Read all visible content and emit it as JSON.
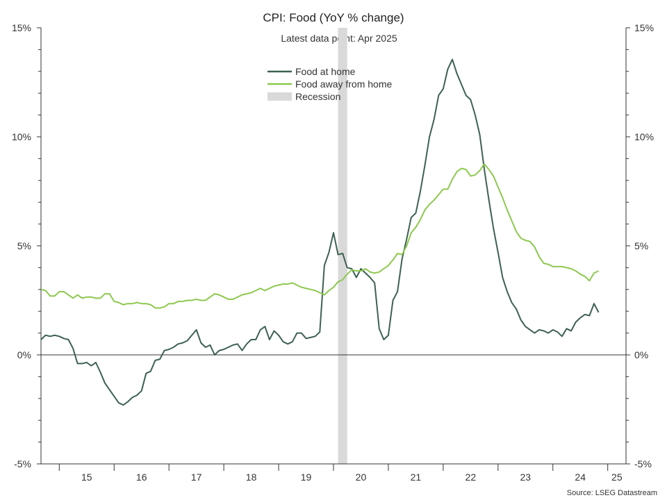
{
  "chart_data": {
    "type": "line",
    "title": "CPI: Food (YoY % change)",
    "subtitle": "Latest data point: Apr 2025",
    "source": "Source: LSEG Datastream",
    "y_unit": "%",
    "ylim": [
      -5,
      15
    ],
    "yticks": [
      -5,
      0,
      5,
      10,
      15
    ],
    "ytick_labels": [
      "-5%",
      "0%",
      "5%",
      "10%",
      "15%"
    ],
    "xlim": [
      "2014-09",
      "2025-05"
    ],
    "x_tick_labels": [
      "15",
      "16",
      "17",
      "18",
      "19",
      "20",
      "21",
      "22",
      "23",
      "24",
      "25"
    ],
    "legend_position": "top-center",
    "recession": {
      "label": "Recession",
      "start": "2020-02",
      "end": "2020-04",
      "color": "#d9d9d9"
    },
    "series": [
      {
        "name": "Food at home",
        "color": "#3d6150",
        "points": [
          [
            "2014-09",
            0.7
          ],
          [
            "2014-10",
            0.9
          ],
          [
            "2014-11",
            0.85
          ],
          [
            "2014-12",
            0.9
          ],
          [
            "2015-01",
            0.85
          ],
          [
            "2015-02",
            0.75
          ],
          [
            "2015-03",
            0.7
          ],
          [
            "2015-04",
            0.3
          ],
          [
            "2015-05",
            -0.4
          ],
          [
            "2015-06",
            -0.4
          ],
          [
            "2015-07",
            -0.35
          ],
          [
            "2015-08",
            -0.5
          ],
          [
            "2015-09",
            -0.35
          ],
          [
            "2015-10",
            -0.8
          ],
          [
            "2015-11",
            -1.3
          ],
          [
            "2015-12",
            -1.6
          ],
          [
            "2016-01",
            -1.9
          ],
          [
            "2016-02",
            -2.2
          ],
          [
            "2016-03",
            -2.3
          ],
          [
            "2016-04",
            -2.15
          ],
          [
            "2016-05",
            -1.95
          ],
          [
            "2016-06",
            -1.85
          ],
          [
            "2016-07",
            -1.65
          ],
          [
            "2016-08",
            -0.85
          ],
          [
            "2016-09",
            -0.75
          ],
          [
            "2016-10",
            -0.25
          ],
          [
            "2016-11",
            -0.2
          ],
          [
            "2016-12",
            0.2
          ],
          [
            "2017-01",
            0.25
          ],
          [
            "2017-02",
            0.35
          ],
          [
            "2017-03",
            0.5
          ],
          [
            "2017-04",
            0.55
          ],
          [
            "2017-05",
            0.65
          ],
          [
            "2017-06",
            0.9
          ],
          [
            "2017-07",
            1.15
          ],
          [
            "2017-08",
            0.55
          ],
          [
            "2017-09",
            0.35
          ],
          [
            "2017-10",
            0.45
          ],
          [
            "2017-11",
            0.0
          ],
          [
            "2017-12",
            0.2
          ],
          [
            "2018-01",
            0.25
          ],
          [
            "2018-02",
            0.35
          ],
          [
            "2018-03",
            0.45
          ],
          [
            "2018-04",
            0.5
          ],
          [
            "2018-05",
            0.2
          ],
          [
            "2018-06",
            0.5
          ],
          [
            "2018-07",
            0.7
          ],
          [
            "2018-08",
            0.7
          ],
          [
            "2018-09",
            1.15
          ],
          [
            "2018-10",
            1.3
          ],
          [
            "2018-11",
            0.7
          ],
          [
            "2018-12",
            1.1
          ],
          [
            "2019-01",
            0.9
          ],
          [
            "2019-02",
            0.6
          ],
          [
            "2019-03",
            0.5
          ],
          [
            "2019-04",
            0.6
          ],
          [
            "2019-05",
            1.0
          ],
          [
            "2019-06",
            1.0
          ],
          [
            "2019-07",
            0.75
          ],
          [
            "2019-08",
            0.8
          ],
          [
            "2019-09",
            0.85
          ],
          [
            "2019-10",
            1.05
          ],
          [
            "2019-11",
            4.1
          ],
          [
            "2019-12",
            4.7
          ],
          [
            "2020-01",
            5.6
          ],
          [
            "2020-02",
            4.6
          ],
          [
            "2020-03",
            4.65
          ],
          [
            "2020-04",
            4.0
          ],
          [
            "2020-05",
            3.95
          ],
          [
            "2020-06",
            3.55
          ],
          [
            "2020-07",
            3.95
          ],
          [
            "2020-08",
            3.75
          ],
          [
            "2020-09",
            3.55
          ],
          [
            "2020-10",
            3.3
          ],
          [
            "2020-11",
            1.2
          ],
          [
            "2020-12",
            0.7
          ],
          [
            "2021-01",
            0.9
          ],
          [
            "2021-02",
            2.5
          ],
          [
            "2021-03",
            2.9
          ],
          [
            "2021-04",
            4.4
          ],
          [
            "2021-05",
            5.3
          ],
          [
            "2021-06",
            6.3
          ],
          [
            "2021-07",
            6.5
          ],
          [
            "2021-08",
            7.5
          ],
          [
            "2021-09",
            8.7
          ],
          [
            "2021-10",
            10.0
          ],
          [
            "2021-11",
            10.8
          ],
          [
            "2021-12",
            11.9
          ],
          [
            "2022-01",
            12.2
          ],
          [
            "2022-02",
            13.1
          ],
          [
            "2022-03",
            13.55
          ],
          [
            "2022-04",
            12.9
          ],
          [
            "2022-05",
            12.4
          ],
          [
            "2022-06",
            11.9
          ],
          [
            "2022-07",
            11.7
          ],
          [
            "2022-08",
            11.0
          ],
          [
            "2022-09",
            10.1
          ],
          [
            "2022-10",
            8.5
          ],
          [
            "2022-11",
            7.1
          ],
          [
            "2022-12",
            5.8
          ],
          [
            "2023-01",
            4.7
          ],
          [
            "2023-02",
            3.55
          ],
          [
            "2023-03",
            2.9
          ],
          [
            "2023-04",
            2.4
          ],
          [
            "2023-05",
            2.1
          ],
          [
            "2023-06",
            1.6
          ],
          [
            "2023-07",
            1.3
          ],
          [
            "2023-08",
            1.15
          ],
          [
            "2023-09",
            1.0
          ],
          [
            "2023-10",
            1.15
          ],
          [
            "2023-11",
            1.1
          ],
          [
            "2023-12",
            1.0
          ],
          [
            "2024-01",
            1.15
          ],
          [
            "2024-02",
            1.05
          ],
          [
            "2024-03",
            0.85
          ],
          [
            "2024-04",
            1.2
          ],
          [
            "2024-05",
            1.1
          ],
          [
            "2024-06",
            1.5
          ],
          [
            "2024-07",
            1.7
          ],
          [
            "2024-08",
            1.85
          ],
          [
            "2024-09",
            1.8
          ],
          [
            "2024-10",
            2.35
          ],
          [
            "2024-11",
            1.95
          ]
        ]
      },
      {
        "name": "Food away from home",
        "color": "#8dc84f",
        "points": [
          [
            "2014-09",
            3.0
          ],
          [
            "2014-10",
            2.95
          ],
          [
            "2014-11",
            2.7
          ],
          [
            "2014-12",
            2.7
          ],
          [
            "2015-01",
            2.9
          ],
          [
            "2015-02",
            2.9
          ],
          [
            "2015-03",
            2.75
          ],
          [
            "2015-04",
            2.6
          ],
          [
            "2015-05",
            2.75
          ],
          [
            "2015-06",
            2.6
          ],
          [
            "2015-07",
            2.65
          ],
          [
            "2015-08",
            2.65
          ],
          [
            "2015-09",
            2.6
          ],
          [
            "2015-10",
            2.6
          ],
          [
            "2015-11",
            2.8
          ],
          [
            "2015-12",
            2.8
          ],
          [
            "2016-01",
            2.45
          ],
          [
            "2016-02",
            2.4
          ],
          [
            "2016-03",
            2.3
          ],
          [
            "2016-04",
            2.35
          ],
          [
            "2016-05",
            2.35
          ],
          [
            "2016-06",
            2.4
          ],
          [
            "2016-07",
            2.35
          ],
          [
            "2016-08",
            2.35
          ],
          [
            "2016-09",
            2.3
          ],
          [
            "2016-10",
            2.15
          ],
          [
            "2016-11",
            2.15
          ],
          [
            "2016-12",
            2.2
          ],
          [
            "2017-01",
            2.35
          ],
          [
            "2017-02",
            2.35
          ],
          [
            "2017-03",
            2.45
          ],
          [
            "2017-04",
            2.45
          ],
          [
            "2017-05",
            2.5
          ],
          [
            "2017-06",
            2.5
          ],
          [
            "2017-07",
            2.55
          ],
          [
            "2017-08",
            2.5
          ],
          [
            "2017-09",
            2.5
          ],
          [
            "2017-10",
            2.65
          ],
          [
            "2017-11",
            2.8
          ],
          [
            "2017-12",
            2.75
          ],
          [
            "2018-01",
            2.65
          ],
          [
            "2018-02",
            2.55
          ],
          [
            "2018-03",
            2.55
          ],
          [
            "2018-04",
            2.65
          ],
          [
            "2018-05",
            2.75
          ],
          [
            "2018-06",
            2.8
          ],
          [
            "2018-07",
            2.85
          ],
          [
            "2018-08",
            2.95
          ],
          [
            "2018-09",
            3.05
          ],
          [
            "2018-10",
            2.95
          ],
          [
            "2018-11",
            3.05
          ],
          [
            "2018-12",
            3.15
          ],
          [
            "2019-01",
            3.2
          ],
          [
            "2019-02",
            3.25
          ],
          [
            "2019-03",
            3.25
          ],
          [
            "2019-04",
            3.3
          ],
          [
            "2019-05",
            3.2
          ],
          [
            "2019-06",
            3.1
          ],
          [
            "2019-07",
            3.05
          ],
          [
            "2019-08",
            3.0
          ],
          [
            "2019-09",
            2.95
          ],
          [
            "2019-10",
            2.85
          ],
          [
            "2019-11",
            2.75
          ],
          [
            "2019-12",
            2.95
          ],
          [
            "2020-01",
            3.1
          ],
          [
            "2020-02",
            3.35
          ],
          [
            "2020-03",
            3.45
          ],
          [
            "2020-04",
            3.7
          ],
          [
            "2020-05",
            3.9
          ],
          [
            "2020-06",
            3.85
          ],
          [
            "2020-07",
            3.85
          ],
          [
            "2020-08",
            3.95
          ],
          [
            "2020-09",
            3.8
          ],
          [
            "2020-10",
            3.75
          ],
          [
            "2020-11",
            3.8
          ],
          [
            "2020-12",
            3.95
          ],
          [
            "2021-01",
            4.1
          ],
          [
            "2021-02",
            4.35
          ],
          [
            "2021-03",
            4.65
          ],
          [
            "2021-04",
            4.6
          ],
          [
            "2021-05",
            5.0
          ],
          [
            "2021-06",
            5.6
          ],
          [
            "2021-07",
            5.85
          ],
          [
            "2021-08",
            6.2
          ],
          [
            "2021-09",
            6.65
          ],
          [
            "2021-10",
            6.9
          ],
          [
            "2021-11",
            7.1
          ],
          [
            "2021-12",
            7.35
          ],
          [
            "2022-01",
            7.6
          ],
          [
            "2022-02",
            7.6
          ],
          [
            "2022-03",
            8.05
          ],
          [
            "2022-04",
            8.4
          ],
          [
            "2022-05",
            8.55
          ],
          [
            "2022-06",
            8.5
          ],
          [
            "2022-07",
            8.2
          ],
          [
            "2022-08",
            8.25
          ],
          [
            "2022-09",
            8.45
          ],
          [
            "2022-10",
            8.75
          ],
          [
            "2022-11",
            8.5
          ],
          [
            "2022-12",
            8.2
          ],
          [
            "2023-01",
            7.7
          ],
          [
            "2023-02",
            7.2
          ],
          [
            "2023-03",
            6.65
          ],
          [
            "2023-04",
            6.15
          ],
          [
            "2023-05",
            5.65
          ],
          [
            "2023-06",
            5.35
          ],
          [
            "2023-07",
            5.25
          ],
          [
            "2023-08",
            5.2
          ],
          [
            "2023-09",
            4.95
          ],
          [
            "2023-10",
            4.5
          ],
          [
            "2023-11",
            4.2
          ],
          [
            "2023-12",
            4.15
          ],
          [
            "2024-01",
            4.05
          ],
          [
            "2024-02",
            4.05
          ],
          [
            "2024-03",
            4.05
          ],
          [
            "2024-04",
            4.0
          ],
          [
            "2024-05",
            3.95
          ],
          [
            "2024-06",
            3.85
          ],
          [
            "2024-07",
            3.7
          ],
          [
            "2024-08",
            3.6
          ],
          [
            "2024-09",
            3.4
          ],
          [
            "2024-10",
            3.75
          ],
          [
            "2024-11",
            3.85
          ]
        ]
      }
    ]
  }
}
